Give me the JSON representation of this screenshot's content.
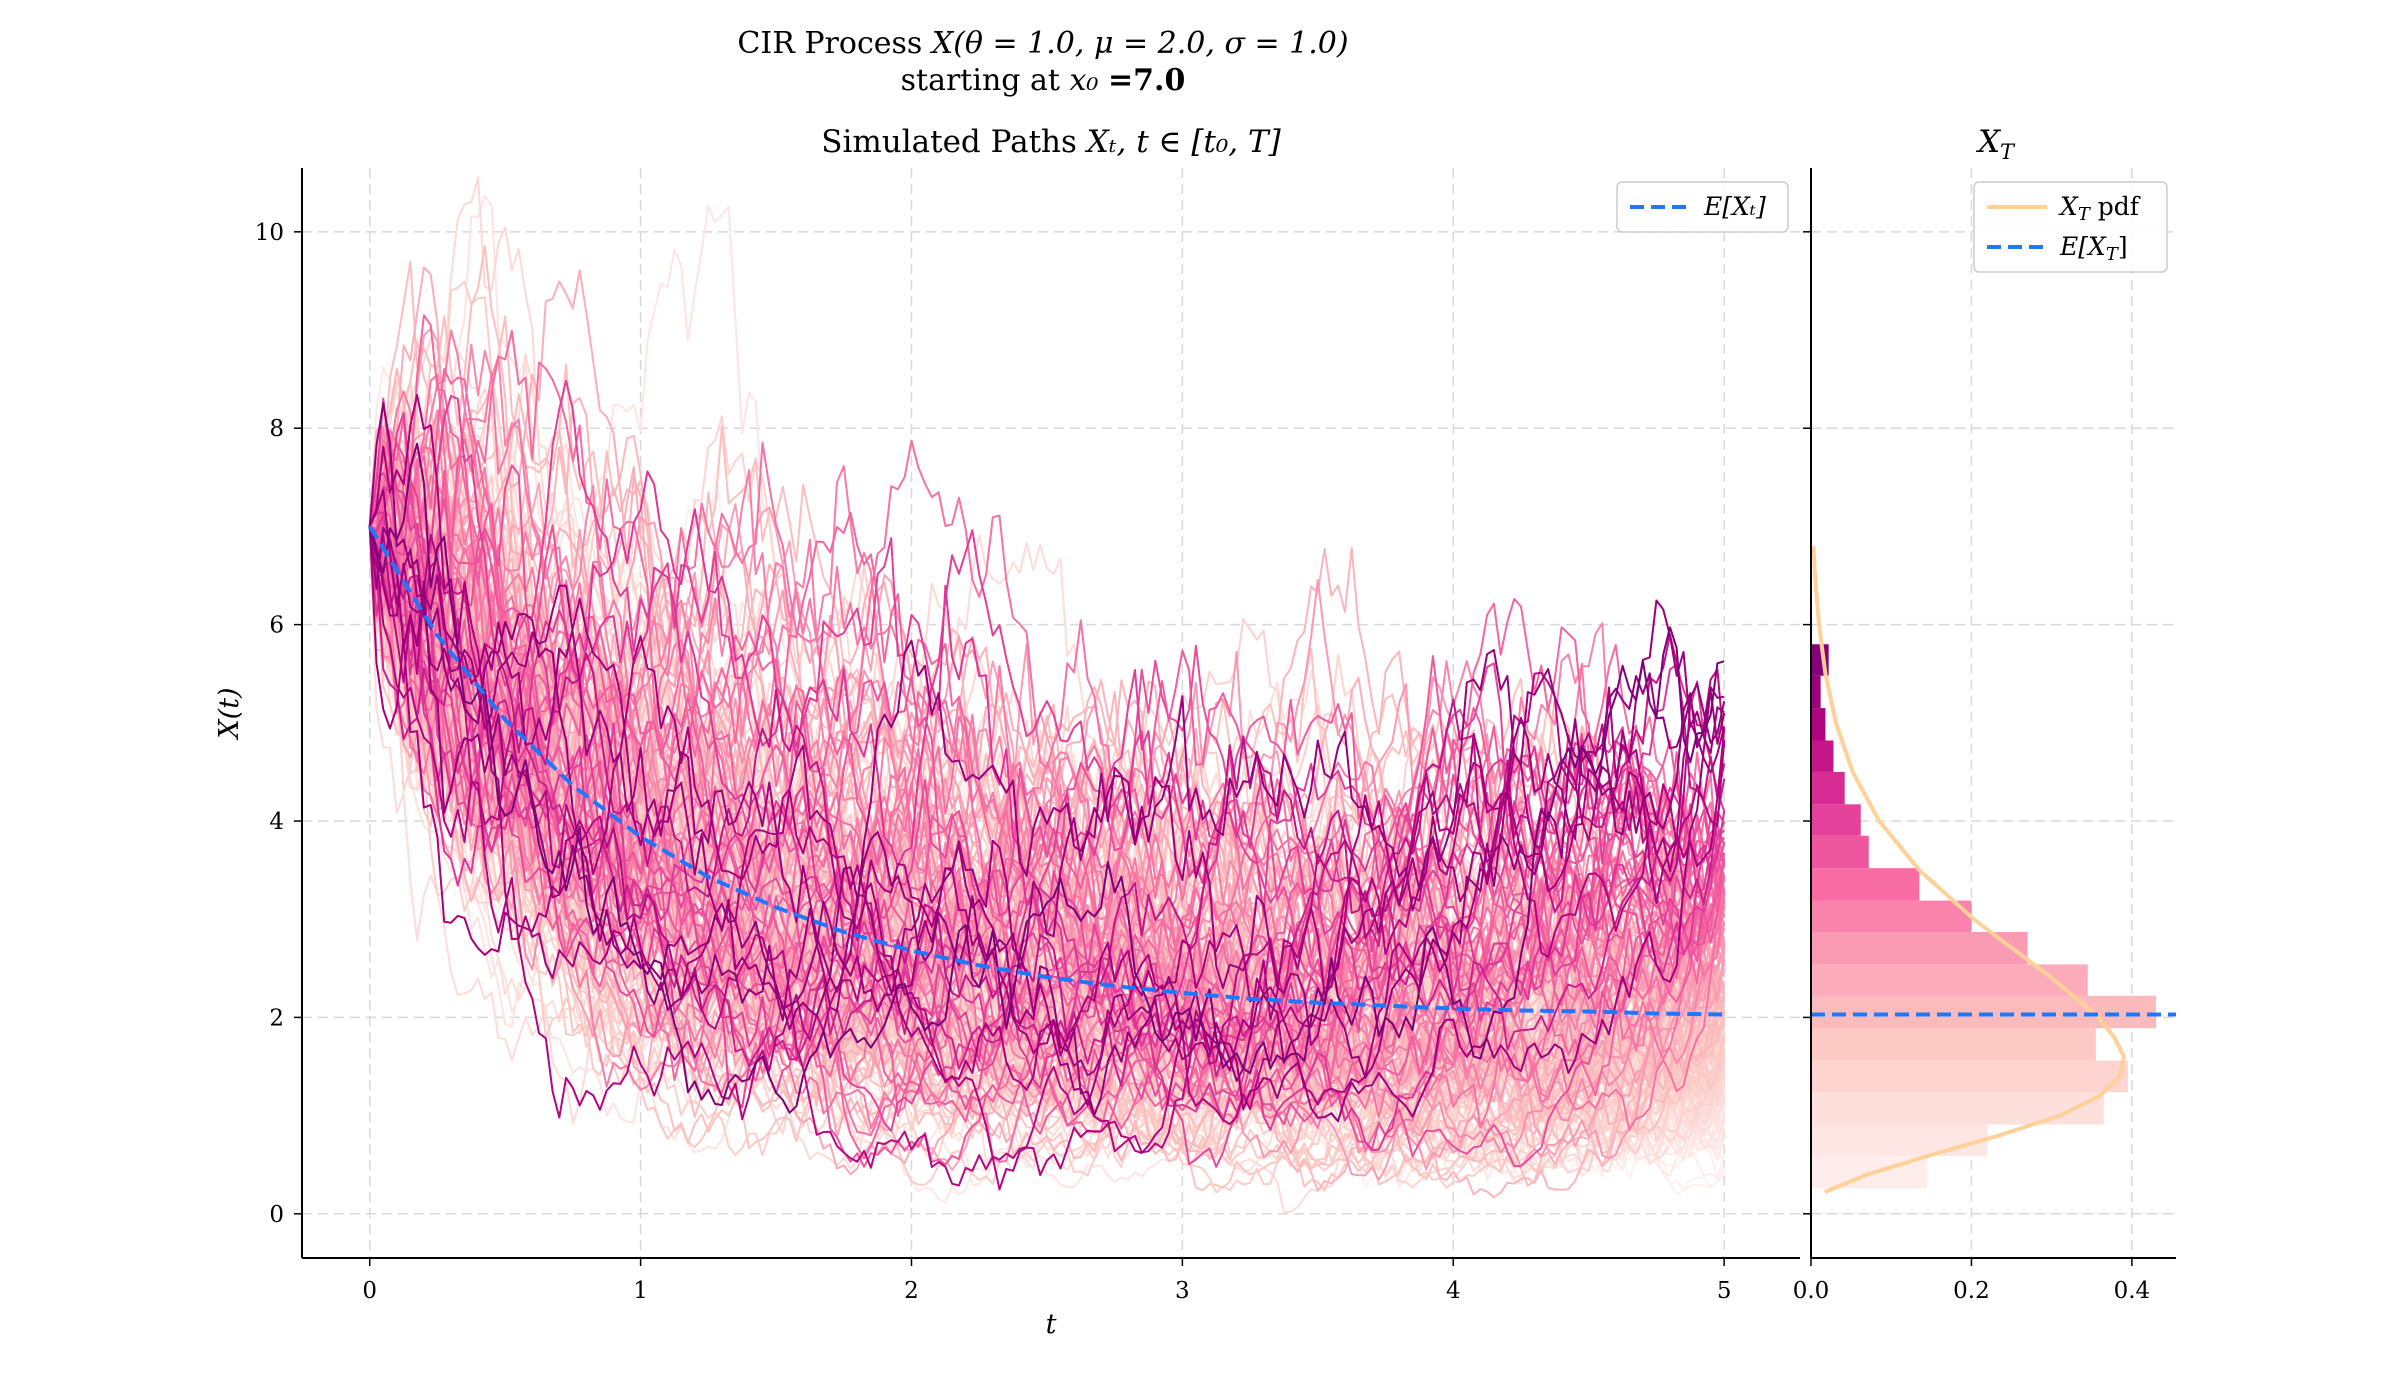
{
  "colors": {
    "mean_line": "#1f77ff",
    "pdf_line": "#ffd199",
    "grid": "#d8d8d8",
    "palette": [
      "#fff1ef",
      "#fde0dd",
      "#fcc5c0",
      "#fa9fb5",
      "#f768a1",
      "#dd3497",
      "#ae017e",
      "#7a0177"
    ]
  },
  "chart_data": [
    {
      "type": "line",
      "suptitle_line1_prefix": "CIR Process",
      "suptitle_line1_math": "X(θ = 1.0, μ = 2.0, σ = 1.0)",
      "suptitle_line2_prefix": "starting at",
      "suptitle_line2_math": "x₀",
      "suptitle_line2_value": "=7.0",
      "title_prefix": "Simulated Paths",
      "title_math": "Xₜ, t ∈ [t₀, T]",
      "xlabel": "t",
      "ylabel": "X(t)",
      "xlim": [
        -0.25,
        5.28
      ],
      "ylim": [
        -0.45,
        10.65
      ],
      "xticks": [
        0,
        1,
        2,
        3,
        4,
        5
      ],
      "yticks": [
        0,
        2,
        4,
        6,
        8,
        10
      ],
      "grid": true,
      "legend": {
        "position": "top-right",
        "entries": [
          {
            "label": "E[Xₜ]",
            "style": "dashed",
            "color": "#1f77ff"
          }
        ]
      },
      "paths": {
        "count": 200,
        "x0": 7.0,
        "t0": 0,
        "T": 5,
        "steps": 200,
        "theta": 1.0,
        "mu": 2.0,
        "sigma": 1.0,
        "colored_by": "terminal value",
        "colormap": "RdPu"
      },
      "mean_line": {
        "name": "E[Xₜ]",
        "x": [
          0,
          0.25,
          0.5,
          0.75,
          1.0,
          1.25,
          1.5,
          1.75,
          2.0,
          2.25,
          2.5,
          2.75,
          3.0,
          3.25,
          3.5,
          3.75,
          4.0,
          4.25,
          4.5,
          4.75,
          5.0
        ],
        "y": [
          7.0,
          5.89,
          5.03,
          4.36,
          3.84,
          3.43,
          3.12,
          2.87,
          2.68,
          2.53,
          2.41,
          2.32,
          2.25,
          2.19,
          2.15,
          2.12,
          2.09,
          2.07,
          2.06,
          2.04,
          2.03
        ]
      }
    },
    {
      "type": "bar",
      "orientation": "horizontal",
      "title": "X_T",
      "title_math": "X",
      "title_sub": "T",
      "xlim": [
        0,
        0.455
      ],
      "xticks": [
        0.0,
        0.2,
        0.4
      ],
      "xtick_labels": [
        "0.0",
        "0.2",
        "0.4"
      ],
      "ylim": [
        -0.45,
        10.65
      ],
      "grid": true,
      "legend": {
        "position": "top-right",
        "entries": [
          {
            "label": "X_T pdf",
            "math": "X",
            "sub": "T",
            "suffix": " pdf",
            "style": "solid",
            "color": "#ffd199"
          },
          {
            "label": "E[X_T]",
            "math": "E[X",
            "sub": "T",
            "suffix": "]",
            "style": "dashed",
            "color": "#1f77ff"
          }
        ]
      },
      "histogram": {
        "bin_edges": [
          0.26,
          0.59,
          0.91,
          1.24,
          1.56,
          1.89,
          2.22,
          2.54,
          2.87,
          3.19,
          3.52,
          3.85,
          4.17,
          4.5,
          4.82,
          5.15,
          5.48,
          5.8
        ],
        "density": [
          0.145,
          0.22,
          0.365,
          0.395,
          0.355,
          0.43,
          0.345,
          0.27,
          0.2,
          0.135,
          0.072,
          0.062,
          0.042,
          0.028,
          0.018,
          0.012,
          0.022
        ]
      },
      "pdf": {
        "x": [
          0.22,
          0.4,
          0.6,
          0.8,
          1.0,
          1.2,
          1.4,
          1.6,
          1.8,
          2.0,
          2.2,
          2.4,
          2.6,
          2.8,
          3.0,
          3.5,
          4.0,
          4.5,
          5.0,
          5.5,
          6.0,
          6.5,
          6.8
        ],
        "y": [
          0.017,
          0.07,
          0.15,
          0.235,
          0.31,
          0.36,
          0.385,
          0.39,
          0.378,
          0.358,
          0.33,
          0.3,
          0.268,
          0.235,
          0.203,
          0.135,
          0.085,
          0.052,
          0.031,
          0.018,
          0.01,
          0.005,
          0.003
        ]
      },
      "mean": 2.03
    }
  ]
}
